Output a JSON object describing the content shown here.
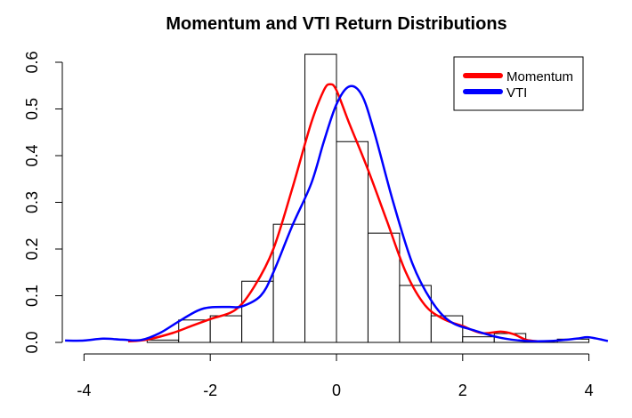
{
  "chart_data": {
    "type": "histogram",
    "title": "Momentum and VTI Return Distributions",
    "xlabel": "",
    "ylabel": "",
    "xlim": [
      -4.3,
      4.3
    ],
    "ylim": [
      0,
      0.6
    ],
    "x_ticks": [
      -4,
      -2,
      0,
      2,
      4
    ],
    "y_ticks": [
      0.0,
      0.1,
      0.2,
      0.3,
      0.4,
      0.5,
      0.6
    ],
    "y_tick_labels": [
      "0.0",
      "0.1",
      "0.2",
      "0.3",
      "0.4",
      "0.5",
      "0.6"
    ],
    "grid": false,
    "legend_position": "top-right",
    "histogram": {
      "bin_width": 0.5,
      "bins": [
        {
          "start": -3.0,
          "density": 0.005
        },
        {
          "start": -2.5,
          "density": 0.048
        },
        {
          "start": -2.0,
          "density": 0.057
        },
        {
          "start": -1.5,
          "density": 0.131
        },
        {
          "start": -1.0,
          "density": 0.253
        },
        {
          "start": -0.5,
          "density": 0.617
        },
        {
          "start": 0.0,
          "density": 0.43
        },
        {
          "start": 0.5,
          "density": 0.234
        },
        {
          "start": 1.0,
          "density": 0.122
        },
        {
          "start": 1.5,
          "density": 0.057
        },
        {
          "start": 2.0,
          "density": 0.012
        },
        {
          "start": 2.5,
          "density": 0.019
        },
        {
          "start": 3.0,
          "density": 0.0
        },
        {
          "start": 3.5,
          "density": 0.007
        }
      ]
    },
    "series": [
      {
        "name": "Momentum",
        "color": "#ff0000",
        "points": [
          [
            -3.3,
            0.002
          ],
          [
            -3.0,
            0.006
          ],
          [
            -2.6,
            0.02
          ],
          [
            -2.3,
            0.035
          ],
          [
            -2.0,
            0.05
          ],
          [
            -1.6,
            0.07
          ],
          [
            -1.3,
            0.12
          ],
          [
            -1.0,
            0.2
          ],
          [
            -0.7,
            0.33
          ],
          [
            -0.4,
            0.47
          ],
          [
            -0.2,
            0.54
          ],
          [
            -0.1,
            0.553
          ],
          [
            0.0,
            0.54
          ],
          [
            0.2,
            0.47
          ],
          [
            0.5,
            0.37
          ],
          [
            0.8,
            0.26
          ],
          [
            1.1,
            0.15
          ],
          [
            1.4,
            0.08
          ],
          [
            1.7,
            0.05
          ],
          [
            2.0,
            0.035
          ],
          [
            2.3,
            0.02
          ],
          [
            2.6,
            0.023
          ],
          [
            2.8,
            0.018
          ],
          [
            3.0,
            0.006
          ],
          [
            3.2,
            0.002
          ]
        ]
      },
      {
        "name": "VTI",
        "color": "#0000ff",
        "points": [
          [
            -4.3,
            0.004
          ],
          [
            -4.0,
            0.004
          ],
          [
            -3.7,
            0.008
          ],
          [
            -3.4,
            0.006
          ],
          [
            -3.1,
            0.005
          ],
          [
            -2.8,
            0.02
          ],
          [
            -2.5,
            0.045
          ],
          [
            -2.2,
            0.068
          ],
          [
            -2.0,
            0.075
          ],
          [
            -1.7,
            0.076
          ],
          [
            -1.5,
            0.077
          ],
          [
            -1.2,
            0.1
          ],
          [
            -1.0,
            0.15
          ],
          [
            -0.7,
            0.25
          ],
          [
            -0.4,
            0.34
          ],
          [
            -0.2,
            0.43
          ],
          [
            0.0,
            0.51
          ],
          [
            0.2,
            0.548
          ],
          [
            0.4,
            0.53
          ],
          [
            0.6,
            0.45
          ],
          [
            0.9,
            0.3
          ],
          [
            1.2,
            0.17
          ],
          [
            1.5,
            0.09
          ],
          [
            1.8,
            0.045
          ],
          [
            2.2,
            0.025
          ],
          [
            2.6,
            0.01
          ],
          [
            3.0,
            0.003
          ],
          [
            3.4,
            0.003
          ],
          [
            3.8,
            0.008
          ],
          [
            4.0,
            0.011
          ],
          [
            4.3,
            0.003
          ]
        ]
      }
    ]
  }
}
